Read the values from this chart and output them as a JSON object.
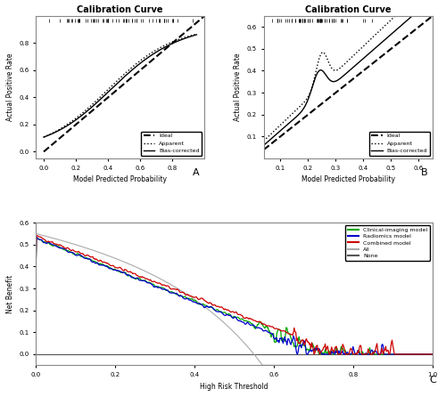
{
  "title_A": "Calibration Curve",
  "title_B": "Calibration Curve",
  "xlabel_cal": "Model Predicted Probability",
  "ylabel_cal": "Actual Positive Rate",
  "xlabel_dca": "High Risk Threshold",
  "ylabel_dca": "Net Benefit",
  "panel_A_label": "A",
  "panel_B_label": "B",
  "panel_C_label": "C",
  "legend_apparent": "Apparent",
  "legend_biascorrected": "Bias-corrected",
  "legend_ideal": "Ideal",
  "legend_clinical": "Clinical-imaging model",
  "legend_radiomics": "Radiomics model",
  "legend_combined": "Combined model",
  "legend_all": "All",
  "legend_none": "None",
  "color_green": "#00aa00",
  "color_blue": "#0000cc",
  "color_red": "#cc0000",
  "color_gray": "#aaaaaa",
  "color_darkgray": "#555555",
  "color_black": "#000000"
}
